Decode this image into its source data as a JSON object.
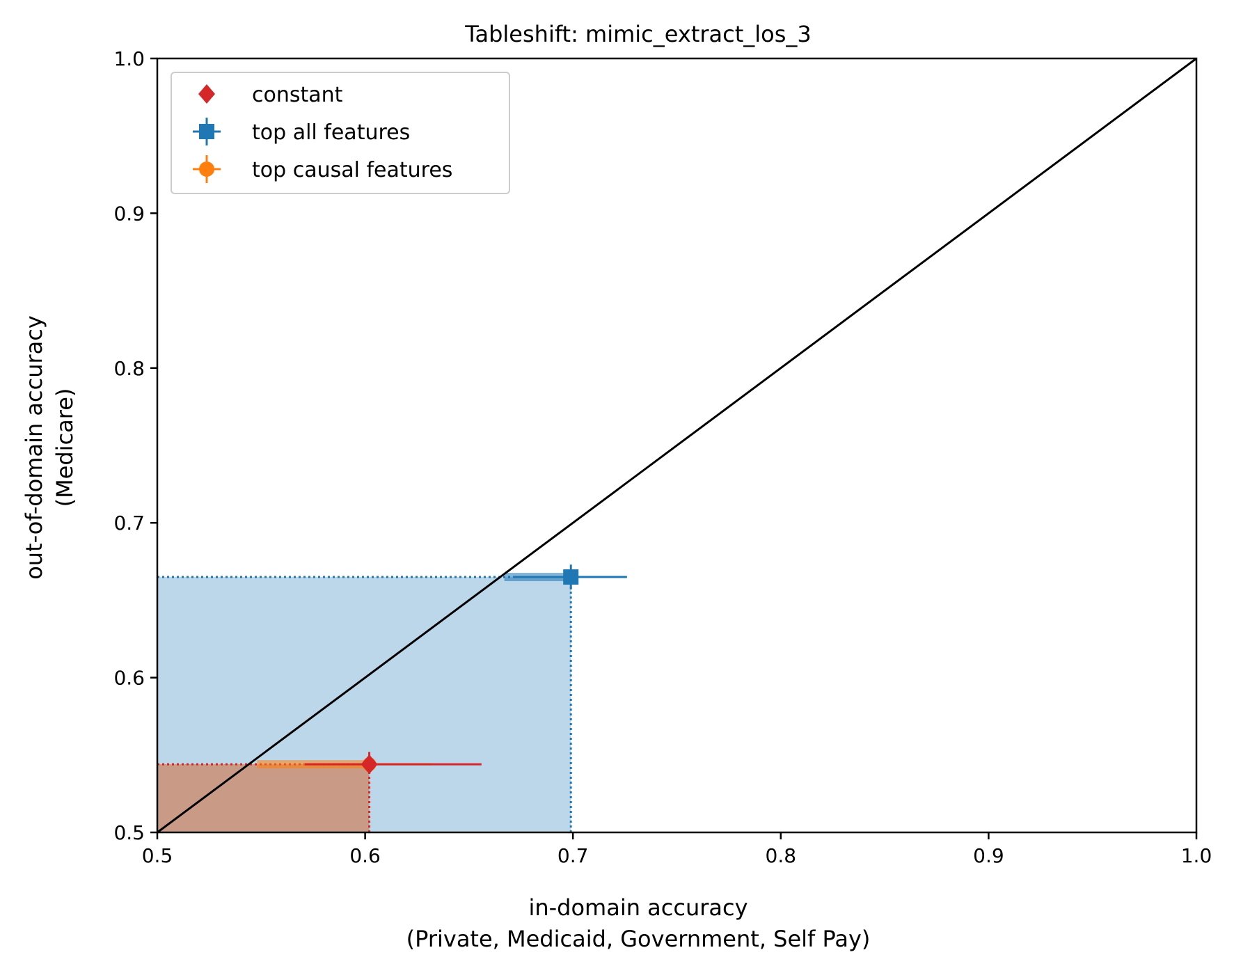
{
  "chart_data": {
    "type": "scatter",
    "title": "Tableshift: mimic_extract_los_3",
    "xlabel": [
      "in-domain accuracy",
      "(Private, Medicaid, Government, Self Pay)"
    ],
    "ylabel": [
      "out-of-domain accuracy",
      "(Medicare)"
    ],
    "xlim": [
      0.5,
      1.0
    ],
    "ylim": [
      0.5,
      1.0
    ],
    "xticks": [
      "0.5",
      "0.6",
      "0.7",
      "0.8",
      "0.9",
      "1.0"
    ],
    "yticks": [
      "0.5",
      "0.6",
      "0.7",
      "0.8",
      "0.9",
      "1.0"
    ],
    "diagonal": {
      "x": [
        0.5,
        1.0
      ],
      "y": [
        0.5,
        1.0
      ],
      "color": "#000000"
    },
    "legend_position": "top-left",
    "series": [
      {
        "name": "constant",
        "marker": "diamond",
        "color": "#d62728",
        "x": 0.602,
        "y": 0.544,
        "xerr": [
          0.571,
          0.656
        ],
        "yerr": [
          0.538,
          0.552
        ],
        "shade_color": "#ff7f0e"
      },
      {
        "name": "top all features",
        "marker": "square",
        "color": "#1f77b4",
        "x": 0.699,
        "y": 0.665,
        "xerr": [
          0.672,
          0.726
        ],
        "yerr": [
          0.657,
          0.673
        ],
        "shade_color": "#a6c8e3"
      },
      {
        "name": "top causal features",
        "marker": "circle",
        "color": "#ff7f0e",
        "x": 0.602,
        "y": 0.544,
        "xerr": [
          0.573,
          0.632
        ],
        "yerr": [
          0.538,
          0.55
        ],
        "shade_color": "#ff7f0e"
      }
    ]
  }
}
